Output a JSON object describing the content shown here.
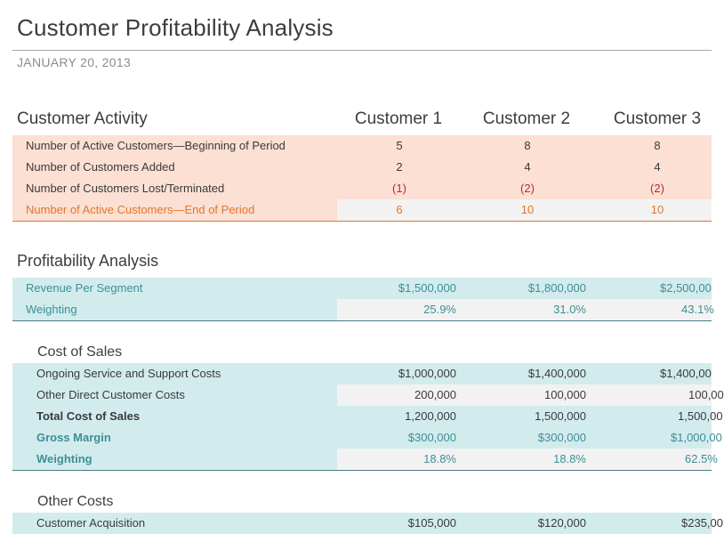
{
  "title": "Customer Profitability Analysis",
  "date": "JANUARY 20, 2013",
  "activity": {
    "heading": "Customer Activity",
    "columns": [
      "Customer 1",
      "Customer 2",
      "Customer 3"
    ],
    "rows": [
      {
        "label": "Number of Active Customers—Beginning of Period",
        "values": [
          "5",
          "8",
          "8"
        ]
      },
      {
        "label": "Number of Customers Added",
        "values": [
          "2",
          "4",
          "4"
        ]
      },
      {
        "label": "Number of Customers Lost/Terminated",
        "values": [
          "(1)",
          "(2)",
          "(2)"
        ]
      },
      {
        "label": "Number of Active Customers—End of Period",
        "values": [
          "6",
          "10",
          "10"
        ]
      }
    ]
  },
  "profitability": {
    "heading": "Profitability Analysis",
    "rows": [
      {
        "label": "Revenue Per Segment",
        "values": [
          "$1,500,000",
          "$1,800,000",
          "$2,500,00"
        ]
      },
      {
        "label": "Weighting",
        "values": [
          "25.9%",
          "31.0%",
          "43.1%"
        ]
      }
    ]
  },
  "cost_of_sales": {
    "heading": "Cost of Sales",
    "rows": [
      {
        "label": "Ongoing Service and Support Costs",
        "values": [
          "$1,000,000",
          "$1,400,000",
          "$1,400,00"
        ]
      },
      {
        "label": "Other Direct Customer Costs",
        "values": [
          "200,000",
          "100,000",
          "100,00"
        ]
      },
      {
        "label": "Total Cost of Sales",
        "values": [
          "1,200,000",
          "1,500,000",
          "1,500,00"
        ]
      },
      {
        "label": "Gross Margin",
        "values": [
          "$300,000",
          "$300,000",
          "$1,000,00"
        ]
      },
      {
        "label": "Weighting",
        "values": [
          "18.8%",
          "18.8%",
          "62.5%"
        ]
      }
    ]
  },
  "other_costs": {
    "heading": "Other Costs",
    "rows": [
      {
        "label": "Customer Acquisition",
        "values": [
          "$105,000",
          "$120,000",
          "$235,00"
        ]
      }
    ]
  }
}
